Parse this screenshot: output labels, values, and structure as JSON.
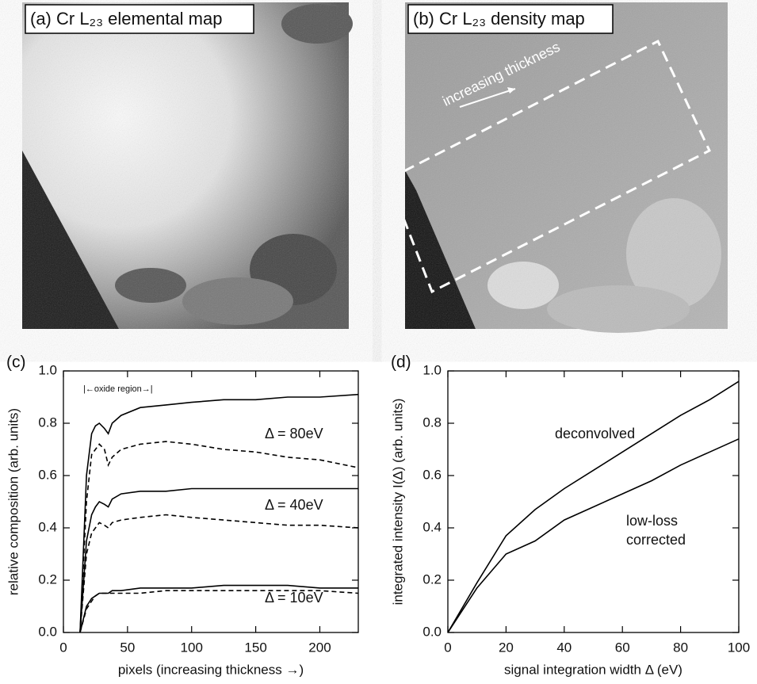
{
  "images": [
    {
      "label": "(a) Cr L₂₃ elemental map"
    },
    {
      "label": "(b) Cr L₂₃ density map",
      "annotation": "increasing thickness"
    }
  ],
  "chart_data": [
    {
      "type": "line",
      "title": "(c)",
      "x_label": "pixels (increasing thickness →)",
      "y_label": "relative composition (arb. units)",
      "x": [
        13,
        18,
        22,
        25,
        28,
        32,
        35,
        38,
        45,
        60,
        80,
        100,
        125,
        150,
        175,
        200,
        230
      ],
      "series": [
        {
          "color": "#000000",
          "dash": false,
          "values": [
            0,
            0.6,
            0.76,
            0.79,
            0.8,
            0.78,
            0.76,
            0.8,
            0.83,
            0.86,
            0.87,
            0.88,
            0.89,
            0.89,
            0.9,
            0.9,
            0.91
          ]
        },
        {
          "color": "#000000",
          "dash": true,
          "values": [
            0,
            0.5,
            0.68,
            0.7,
            0.72,
            0.7,
            0.64,
            0.67,
            0.7,
            0.72,
            0.73,
            0.72,
            0.7,
            0.69,
            0.67,
            0.66,
            0.63
          ]
        },
        {
          "color": "#000000",
          "dash": false,
          "values": [
            0,
            0.35,
            0.45,
            0.48,
            0.5,
            0.49,
            0.48,
            0.51,
            0.53,
            0.54,
            0.54,
            0.55,
            0.55,
            0.55,
            0.55,
            0.55,
            0.55
          ]
        },
        {
          "color": "#000000",
          "dash": true,
          "values": [
            0,
            0.3,
            0.38,
            0.4,
            0.42,
            0.41,
            0.4,
            0.42,
            0.43,
            0.44,
            0.45,
            0.44,
            0.43,
            0.42,
            0.41,
            0.41,
            0.4
          ]
        },
        {
          "color": "#000000",
          "dash": false,
          "values": [
            0,
            0.1,
            0.13,
            0.14,
            0.15,
            0.15,
            0.15,
            0.16,
            0.16,
            0.17,
            0.17,
            0.17,
            0.18,
            0.18,
            0.18,
            0.17,
            0.17
          ]
        },
        {
          "color": "#000000",
          "dash": true,
          "values": [
            0,
            0.09,
            0.12,
            0.14,
            0.15,
            0.15,
            0.15,
            0.15,
            0.15,
            0.15,
            0.16,
            0.16,
            0.16,
            0.16,
            0.16,
            0.16,
            0.15
          ]
        }
      ],
      "annotations": [
        "Δ = 80eV",
        "Δ = 40eV",
        "Δ = 10eV",
        "|←oxide region→|"
      ],
      "xlim": [
        0,
        230
      ],
      "xticks": [
        0,
        50,
        100,
        150,
        200
      ],
      "ylim": [
        0,
        1
      ],
      "yticks": [
        {
          "value": 0,
          "label": "0.0"
        },
        {
          "value": 0.2,
          "label": "0.2"
        },
        {
          "value": 0.4,
          "label": "0.4"
        },
        {
          "value": 0.6,
          "label": "0.6"
        },
        {
          "value": 0.8,
          "label": "0.8"
        },
        {
          "value": 1,
          "label": "1.0"
        }
      ]
    },
    {
      "type": "line",
      "title": "(d)",
      "x_label": "signal integration width Δ (eV)",
      "y_label": "integrated intensity I(Δ) (arb. units)",
      "x": [
        0,
        10,
        20,
        30,
        40,
        50,
        60,
        70,
        80,
        90,
        100
      ],
      "series": [
        {
          "label": [
            "deconvolved"
          ],
          "color": "#000000",
          "dash": false,
          "values": [
            0,
            0.19,
            0.37,
            0.47,
            0.55,
            0.62,
            0.69,
            0.76,
            0.83,
            0.89,
            0.96
          ]
        },
        {
          "label": [
            "low-loss",
            "corrected"
          ],
          "color": "#000000",
          "dash": false,
          "values": [
            0,
            0.17,
            0.3,
            0.35,
            0.43,
            0.48,
            0.53,
            0.58,
            0.64,
            0.69,
            0.74
          ]
        }
      ],
      "xlim": [
        0,
        100
      ],
      "xticks": [
        0,
        20,
        40,
        60,
        80,
        100
      ],
      "ylim": [
        0,
        1
      ],
      "yticks": [
        {
          "value": 0,
          "label": "0.0"
        },
        {
          "value": 0.2,
          "label": "0.2"
        },
        {
          "value": 0.4,
          "label": "0.4"
        },
        {
          "value": 0.6,
          "label": "0.6"
        },
        {
          "value": 0.8,
          "label": "0.8"
        },
        {
          "value": 1,
          "label": "1.0"
        }
      ]
    }
  ]
}
